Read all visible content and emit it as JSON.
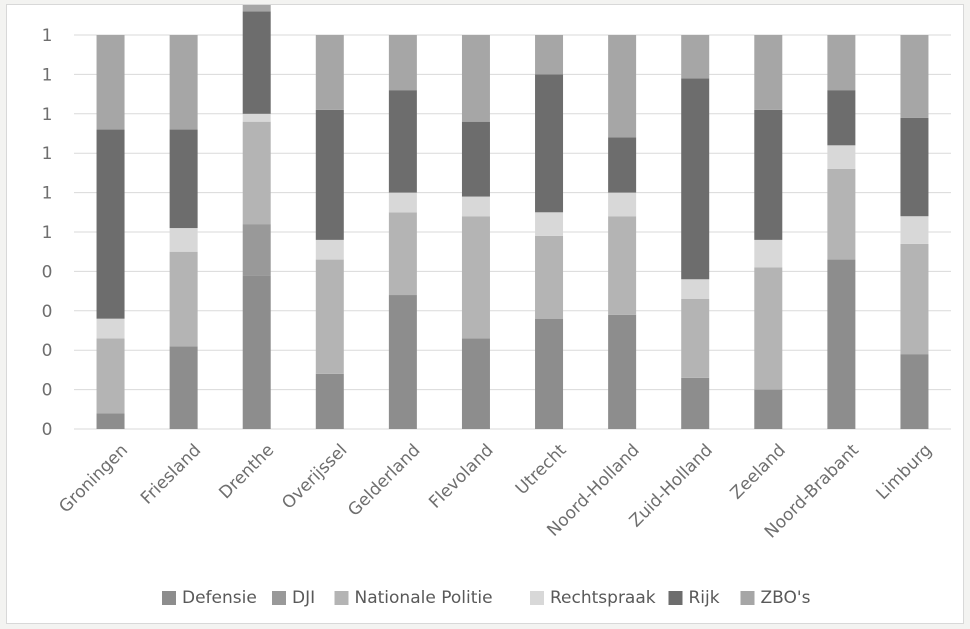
{
  "chart_data": {
    "type": "bar",
    "stacked": true,
    "normalized": true,
    "categories": [
      "Groningen",
      "Friesland",
      "Drenthe",
      "Overijssel",
      "Gelderland",
      "Flevoland",
      "Utrecht",
      "Noord-Holland",
      "Zuid-Holland",
      "Zeeland",
      "Noord-Brabant",
      "Limburg"
    ],
    "y_tick_labels": [
      "0",
      "0",
      "0",
      "0",
      "0",
      "1",
      "1",
      "1",
      "1",
      "1",
      "1"
    ],
    "ylim": [
      0,
      1
    ],
    "grid": true,
    "legend_position": "bottom",
    "series": [
      {
        "name": "Defensie",
        "color": "#8d8d8d",
        "values": [
          0.04,
          0.21,
          0.39,
          0.14,
          0.34,
          0.23,
          0.28,
          0.29,
          0.13,
          0.1,
          0.43,
          0.19
        ]
      },
      {
        "name": "DJI",
        "color": "#999999",
        "values": [
          0.0,
          0.0,
          0.13,
          0.0,
          0.0,
          0.0,
          0.0,
          0.0,
          0.0,
          0.0,
          0.0,
          0.0
        ]
      },
      {
        "name": "Nationale Politie",
        "color": "#b4b4b4",
        "values": [
          0.19,
          0.24,
          0.26,
          0.29,
          0.21,
          0.31,
          0.21,
          0.25,
          0.2,
          0.31,
          0.23,
          0.28
        ]
      },
      {
        "name": "Rechtspraak",
        "color": "#d8d8d8",
        "values": [
          0.05,
          0.06,
          0.02,
          0.05,
          0.05,
          0.05,
          0.06,
          0.06,
          0.05,
          0.07,
          0.06,
          0.07
        ]
      },
      {
        "name": "Rijk",
        "color": "#6d6d6d",
        "values": [
          0.48,
          0.25,
          0.26,
          0.33,
          0.26,
          0.19,
          0.35,
          0.14,
          0.51,
          0.33,
          0.14,
          0.25
        ]
      },
      {
        "name": "ZBO's",
        "color": "#a6a6a6",
        "values": [
          0.24,
          0.24,
          0.05,
          0.19,
          0.14,
          0.22,
          0.1,
          0.26,
          0.11,
          0.19,
          0.14,
          0.21
        ]
      }
    ]
  }
}
